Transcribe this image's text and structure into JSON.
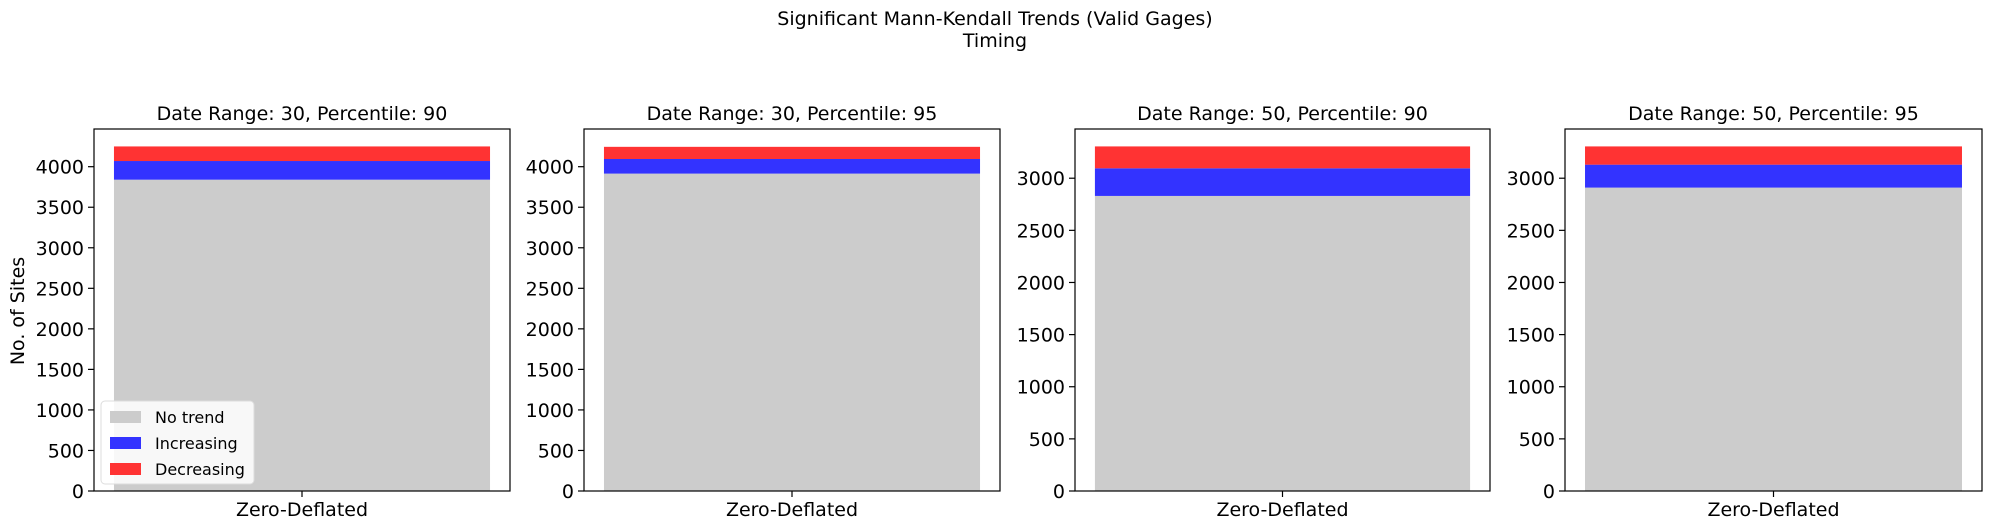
{
  "figure": {
    "title_line1": "Significant Mann-Kendall Trends (Valid Gages)",
    "title_line2": "Timing",
    "ylabel": "No. of Sites"
  },
  "legend": {
    "placement": "lower-left",
    "items": [
      {
        "label": "No trend",
        "color": "#cccccc"
      },
      {
        "label": "Increasing",
        "color": "#3333ff"
      },
      {
        "label": "Decreasing",
        "color": "#ff3333"
      }
    ]
  },
  "chart_data": [
    {
      "type": "bar",
      "stacked": true,
      "title": "Date Range: 30, Percentile: 90",
      "categories": [
        "Zero-Deflated"
      ],
      "ylim": [
        0,
        4465
      ],
      "yticks": [
        0,
        500,
        1000,
        1500,
        2000,
        2500,
        3000,
        3500,
        4000
      ],
      "series": [
        {
          "name": "No trend",
          "values": [
            3840
          ],
          "color": "#cccccc"
        },
        {
          "name": "Increasing",
          "values": [
            230
          ],
          "color": "#3333ff"
        },
        {
          "name": "Decreasing",
          "values": [
            180
          ],
          "color": "#ff3333"
        }
      ]
    },
    {
      "type": "bar",
      "stacked": true,
      "title": "Date Range: 30, Percentile: 95",
      "categories": [
        "Zero-Deflated"
      ],
      "ylim": [
        0,
        4465
      ],
      "yticks": [
        0,
        500,
        1000,
        1500,
        2000,
        2500,
        3000,
        3500,
        4000
      ],
      "series": [
        {
          "name": "No trend",
          "values": [
            3915
          ],
          "color": "#cccccc"
        },
        {
          "name": "Increasing",
          "values": [
            180
          ],
          "color": "#3333ff"
        },
        {
          "name": "Decreasing",
          "values": [
            150
          ],
          "color": "#ff3333"
        }
      ]
    },
    {
      "type": "bar",
      "stacked": true,
      "title": "Date Range: 50, Percentile: 90",
      "categories": [
        "Zero-Deflated"
      ],
      "ylim": [
        0,
        3472
      ],
      "yticks": [
        0,
        500,
        1000,
        1500,
        2000,
        2500,
        3000
      ],
      "series": [
        {
          "name": "No trend",
          "values": [
            2830
          ],
          "color": "#cccccc"
        },
        {
          "name": "Increasing",
          "values": [
            265
          ],
          "color": "#3333ff"
        },
        {
          "name": "Decreasing",
          "values": [
            210
          ],
          "color": "#ff3333"
        }
      ]
    },
    {
      "type": "bar",
      "stacked": true,
      "title": "Date Range: 50, Percentile: 95",
      "categories": [
        "Zero-Deflated"
      ],
      "ylim": [
        0,
        3472
      ],
      "yticks": [
        0,
        500,
        1000,
        1500,
        2000,
        2500,
        3000
      ],
      "series": [
        {
          "name": "No trend",
          "values": [
            2910
          ],
          "color": "#cccccc"
        },
        {
          "name": "Increasing",
          "values": [
            220
          ],
          "color": "#3333ff"
        },
        {
          "name": "Decreasing",
          "values": [
            175
          ],
          "color": "#ff3333"
        }
      ]
    }
  ]
}
